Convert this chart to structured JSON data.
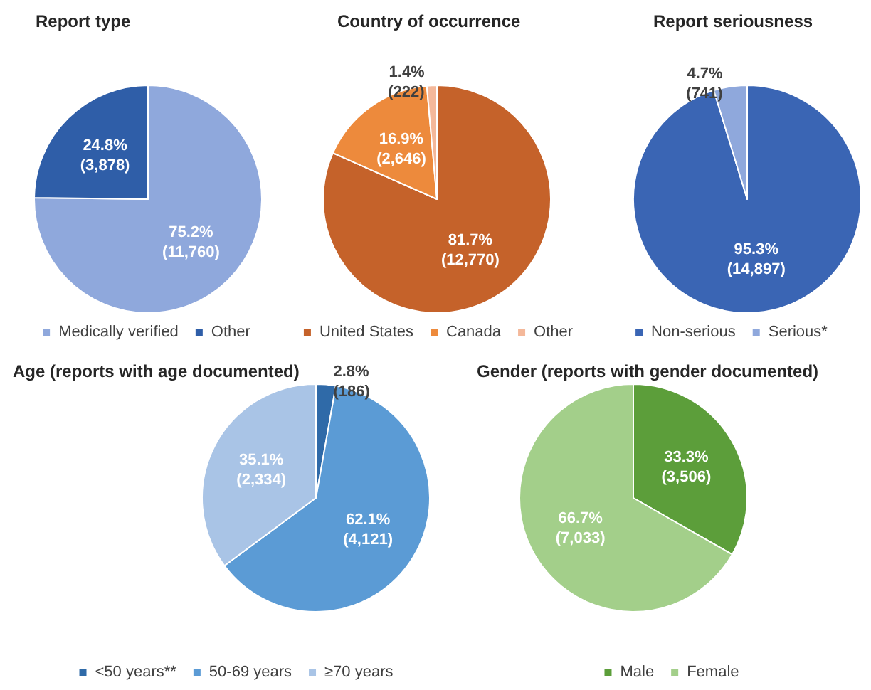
{
  "chart_data": [
    {
      "type": "pie",
      "title": "Report type",
      "categories": [
        "Medically verified",
        "Other"
      ],
      "values": [
        11760,
        3878
      ],
      "colors": [
        "#8fa8dc",
        "#2f5ea8"
      ],
      "value_labels": [
        "75.2%\n(11,760)",
        "24.8%\n(3,878)"
      ],
      "legend": "bottom"
    },
    {
      "type": "pie",
      "title": "Country of occurrence",
      "categories": [
        "United States",
        "Canada",
        "Other"
      ],
      "values": [
        12770,
        2646,
        222
      ],
      "colors": [
        "#c5622a",
        "#ed8a3c",
        "#f4b89a"
      ],
      "value_labels": [
        "81.7%\n(12,770)",
        "16.9%\n(2,646)",
        "1.4%\n(222)"
      ],
      "legend": "bottom"
    },
    {
      "type": "pie",
      "title": "Report seriousness",
      "categories": [
        "Non-serious",
        "Serious*"
      ],
      "values": [
        14897,
        741
      ],
      "colors": [
        "#3a65b4",
        "#8fa8dc"
      ],
      "value_labels": [
        "95.3%\n(14,897)",
        "4.7%\n(741)"
      ],
      "legend": "bottom"
    },
    {
      "type": "pie",
      "title": "Age (reports with age documented)",
      "categories": [
        "<50 years**",
        "50-69 years",
        "≥70 years"
      ],
      "values": [
        186,
        4121,
        2334
      ],
      "colors": [
        "#2f6aa8",
        "#5b9bd5",
        "#a9c4e6"
      ],
      "value_labels": [
        "2.8%\n(186)",
        "62.1%\n(4,121)",
        "35.1%\n(2,334)"
      ],
      "legend": "bottom"
    },
    {
      "type": "pie",
      "title": "Gender (reports with gender documented)",
      "categories": [
        "Male",
        "Female"
      ],
      "values": [
        3506,
        7033
      ],
      "colors": [
        "#5c9e3a",
        "#a3cf8a"
      ],
      "value_labels": [
        "33.3%\n(3,506)",
        "66.7%\n(7,033)"
      ],
      "legend": "bottom"
    }
  ]
}
